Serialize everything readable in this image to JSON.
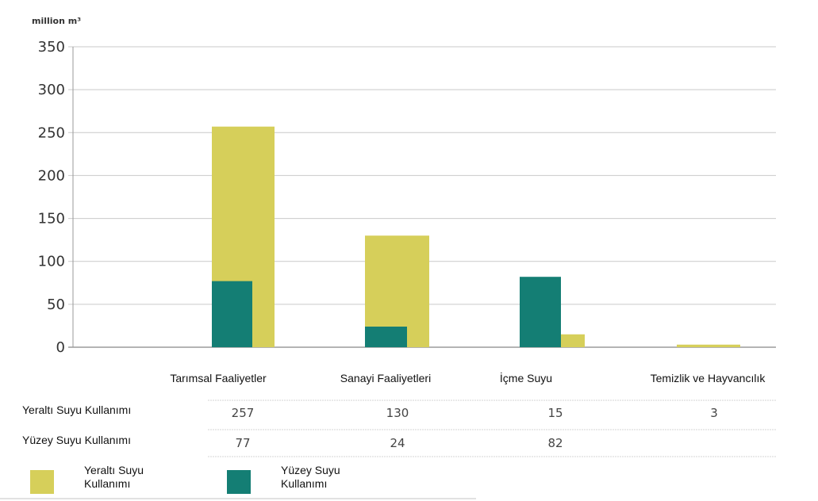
{
  "chart_data": {
    "type": "bar",
    "unit_label": "million m³",
    "categories": [
      "Tarımsal Faaliyetler",
      "Sanayi Faaliyetleri",
      "İçme Suyu",
      "Temizlik ve Hayvancılık"
    ],
    "series": [
      {
        "name": "Yeraltı Suyu Kullanımı",
        "values": [
          257,
          130,
          15,
          3
        ],
        "display": [
          "257",
          "130",
          "15",
          "3"
        ]
      },
      {
        "name": "Yüzey Suyu Kullanımı",
        "values": [
          77,
          24,
          82,
          0
        ],
        "display": [
          "77",
          "24",
          "82",
          ""
        ]
      }
    ],
    "ylim": [
      0,
      350
    ],
    "yticks": [
      0,
      50,
      100,
      150,
      200,
      250,
      300,
      350
    ],
    "grid": true,
    "colors": {
      "groundwater": "#d6cf5a",
      "surface": "#147e74"
    },
    "legend": {
      "placement": "bottom-left",
      "items": [
        {
          "line1": "Yeraltı Suyu",
          "line2": "Kullanımı"
        },
        {
          "line1": "Yüzey Suyu",
          "line2": "Kullanımı"
        }
      ]
    }
  }
}
